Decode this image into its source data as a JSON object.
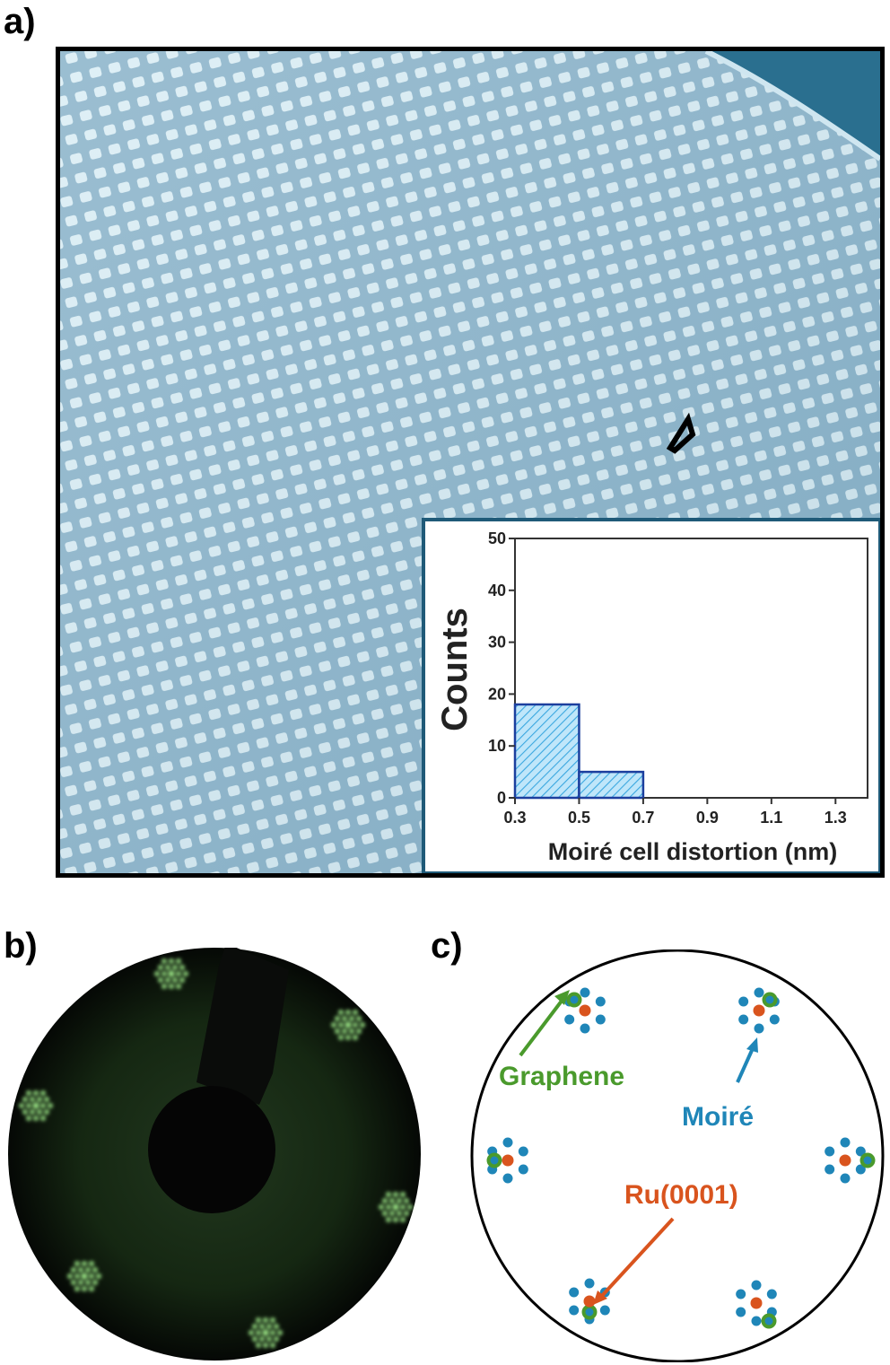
{
  "panels": {
    "a": "a)",
    "b": "b)",
    "c": "c)"
  },
  "chart_data": {
    "type": "bar",
    "title": "",
    "xlabel": "Moiré cell distortion (nm)",
    "ylabel": "Counts",
    "xlim": [
      0.3,
      1.4
    ],
    "ylim": [
      0,
      50
    ],
    "xticks": [
      "0.3",
      "0.5",
      "0.7",
      "0.9",
      "1.1",
      "1.3"
    ],
    "yticks": [
      "0",
      "10",
      "20",
      "30",
      "40",
      "50"
    ],
    "bins": [
      {
        "from": 0.3,
        "to": 0.5,
        "value": 18
      },
      {
        "from": 0.5,
        "to": 0.7,
        "value": 5
      }
    ],
    "bar_fill": "#8fd3f4",
    "bar_edge": "#1c3f9e",
    "grid": false
  },
  "diagram": {
    "labels": {
      "graphene": "Graphene",
      "moire": "Moiré",
      "ru": "Ru(0001)"
    },
    "colors": {
      "graphene": "#4a9a2c",
      "moire": "#1f86b8",
      "ru": "#d9541e"
    }
  },
  "colors": {
    "stm_background": "#9ec3d6",
    "stm_dot": "#dbeef5",
    "stm_corner": "#2a6f8f",
    "leed_spot": "#a6f58f"
  }
}
